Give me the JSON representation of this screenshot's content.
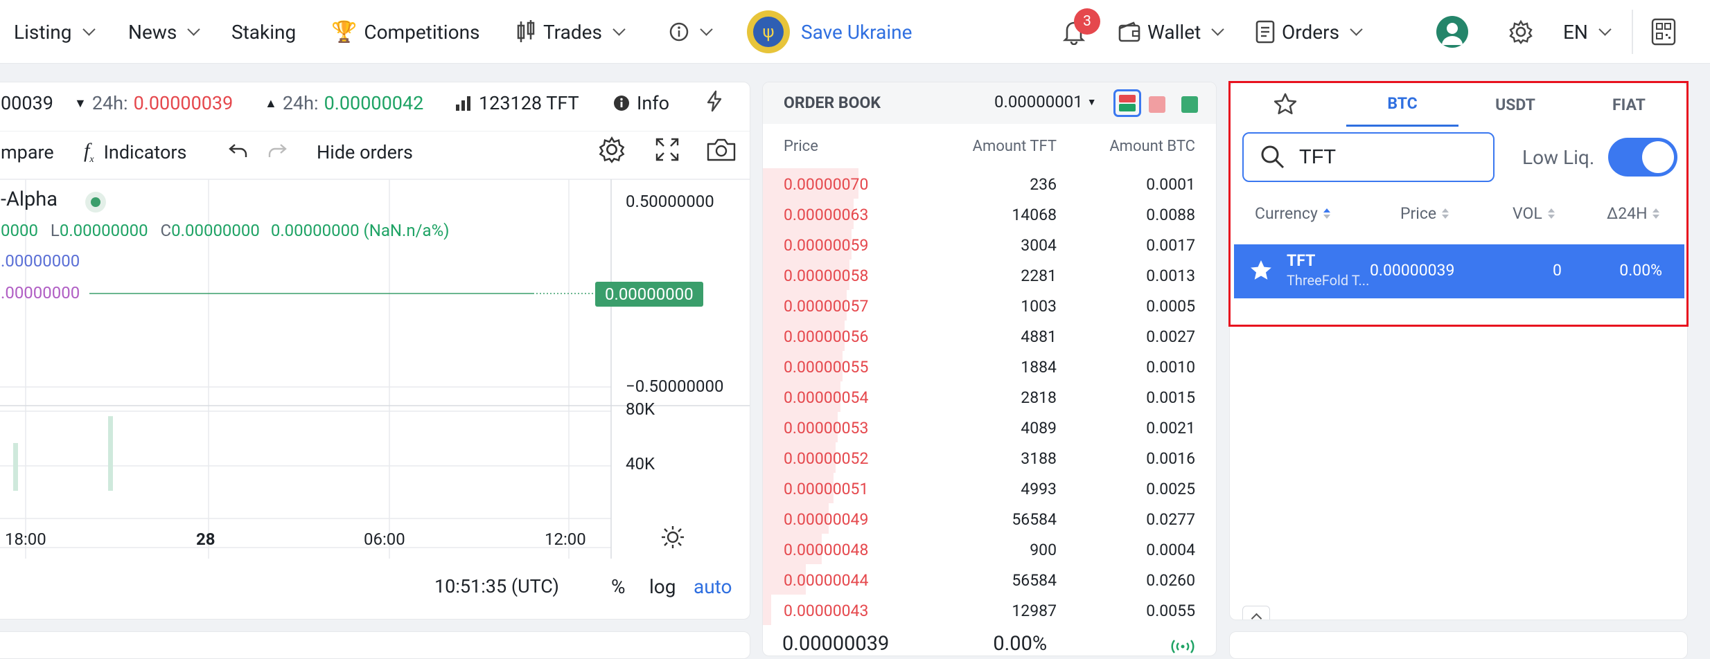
{
  "nav": {
    "listing": "Listing",
    "news": "News",
    "staking": "Staking",
    "competitions": "Competitions",
    "trades": "Trades",
    "save_ukraine": "Save Ukraine",
    "notifications_count": "3",
    "wallet": "Wallet",
    "orders": "Orders",
    "language": "EN"
  },
  "ticker": {
    "last_price": "00039",
    "low_label": "24h:",
    "low_value": "0.00000039",
    "high_label": "24h:",
    "high_value": "0.00000042",
    "volume": "123128 TFT",
    "info": "Info"
  },
  "chart_toolbar": {
    "compare": "mpare",
    "indicators": "Indicators",
    "hide_orders": "Hide orders"
  },
  "chart_legend": {
    "symbol": "-Alpha",
    "ohlc_l_label": "L",
    "ohlc_l": "0.00000000",
    "ohlc_c_label": "C",
    "ohlc_c": "0.00000000",
    "change": "0.00000000 (NaN.n/a%)",
    "prefix": "0000",
    "ma1": ".00000000",
    "ma2": ".00000000"
  },
  "chart_data": {
    "type": "bar",
    "price_axis": [
      "0.50000000",
      "0.00000000",
      "−0.50000000"
    ],
    "volume_axis": [
      "80K",
      "40K"
    ],
    "time_axis": [
      "18:00",
      "28",
      "06:00",
      "12:00"
    ],
    "last_price_tag": "0.00000000",
    "volume_bars": [
      {
        "x": "before 18:00",
        "value": 48000
      },
      {
        "x": "between 18:00 and 28",
        "value": 75000
      }
    ]
  },
  "chart_footer": {
    "time": "10:51:35 (UTC)",
    "percent": "%",
    "log": "log",
    "auto": "auto"
  },
  "orderbook": {
    "title": "ORDER BOOK",
    "precision": "0.00000001",
    "col_price": "Price",
    "col_amount": "Amount TFT",
    "col_total": "Amount BTC",
    "rows": [
      {
        "price": "0.00000070",
        "amount": "236",
        "total": "0.0001",
        "depth": 0.21
      },
      {
        "price": "0.00000063",
        "amount": "14068",
        "total": "0.0088",
        "depth": 0.2
      },
      {
        "price": "0.00000059",
        "amount": "3004",
        "total": "0.0017",
        "depth": 0.195
      },
      {
        "price": "0.00000058",
        "amount": "2281",
        "total": "0.0013",
        "depth": 0.19
      },
      {
        "price": "0.00000057",
        "amount": "1003",
        "total": "0.0005",
        "depth": 0.185
      },
      {
        "price": "0.00000056",
        "amount": "4881",
        "total": "0.0027",
        "depth": 0.18
      },
      {
        "price": "0.00000055",
        "amount": "1884",
        "total": "0.0010",
        "depth": 0.175
      },
      {
        "price": "0.00000054",
        "amount": "2818",
        "total": "0.0015",
        "depth": 0.17
      },
      {
        "price": "0.00000053",
        "amount": "4089",
        "total": "0.0021",
        "depth": 0.165
      },
      {
        "price": "0.00000052",
        "amount": "3188",
        "total": "0.0016",
        "depth": 0.16
      },
      {
        "price": "0.00000051",
        "amount": "4993",
        "total": "0.0025",
        "depth": 0.155
      },
      {
        "price": "0.00000049",
        "amount": "56584",
        "total": "0.0277",
        "depth": 0.145
      },
      {
        "price": "0.00000048",
        "amount": "900",
        "total": "0.0004",
        "depth": 0.13
      },
      {
        "price": "0.00000044",
        "amount": "56584",
        "total": "0.0260",
        "depth": 0.095
      },
      {
        "price": "0.00000043",
        "amount": "12987",
        "total": "0.0055",
        "depth": 0.018
      }
    ],
    "last_price": "0.00000039",
    "last_change": "0.00%"
  },
  "markets": {
    "tabs": [
      "BTC",
      "USDT",
      "FIAT"
    ],
    "search_value": "TFT",
    "low_liq": "Low Liq.",
    "col_currency": "Currency",
    "col_price": "Price",
    "col_vol": "VOL",
    "col_change": "Δ24H",
    "rows": [
      {
        "symbol": "TFT",
        "name": "ThreeFold T...",
        "price": "0.00000039",
        "vol": "0",
        "change": "0.00%"
      }
    ]
  }
}
